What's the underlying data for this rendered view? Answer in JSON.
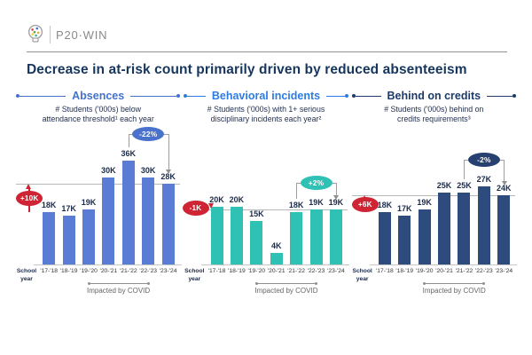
{
  "header": {
    "logo_text": "P20·WIN",
    "title": "Decrease in at-risk count primarily driven by reduced absenteeism"
  },
  "chart_data": [
    {
      "type": "bar",
      "title": "Absences",
      "subtitle": "# Students ('000s) below\nattendance threshold¹ each year",
      "categories": [
        "'17-'18",
        "'18-'19",
        "'19-'20",
        "'20-'21",
        "'21-'22",
        "'22-'23",
        "'23-'24"
      ],
      "values": [
        18,
        17,
        19,
        30,
        36,
        30,
        28
      ],
      "value_suffix": "K",
      "ylim": [
        0,
        40
      ],
      "x_axis_label": "School\nyear",
      "covid_label": "Impacted by COVID",
      "covid_span_indexes": [
        2,
        5
      ],
      "bar_color": "#5b7cd4",
      "title_color": "#4472cb",
      "change_badge": {
        "label": "+10K",
        "color": "#ce2433",
        "direction": "up"
      },
      "percent_badge": {
        "label": "-22%",
        "color": "#4a72cc",
        "from_index": 4,
        "to_index": 6
      }
    },
    {
      "type": "bar",
      "title": "Behavioral incidents",
      "subtitle": "# Students ('000s) with 1+ serious\ndisciplinary incidents each year²",
      "categories": [
        "'17-'18",
        "'18-'19",
        "'19-'20",
        "'20-'21",
        "'21-'22",
        "'22-'23",
        "'23-'24"
      ],
      "values": [
        20,
        20,
        15,
        4,
        18,
        19,
        19
      ],
      "value_suffix": "K",
      "ylim": [
        0,
        40
      ],
      "x_axis_label": "School\nyear",
      "covid_label": "Impacted by COVID",
      "covid_span_indexes": [
        2,
        5
      ],
      "bar_color": "#2fc2b4",
      "title_color": "#2d7ce4",
      "change_badge": {
        "label": "-1K",
        "color": "#ce2433",
        "direction": "down"
      },
      "percent_badge": {
        "label": "+2%",
        "color": "#2fc2b4",
        "from_index": 4,
        "to_index": 6
      }
    },
    {
      "type": "bar",
      "title": "Behind on credits",
      "subtitle": "# Students ('000s) behind on\ncredits requirements³",
      "categories": [
        "'17-'18",
        "'18-'19",
        "'19-'20",
        "'20-'21",
        "'21-'22",
        "'22-'23",
        "'23-'24"
      ],
      "values": [
        18,
        17,
        19,
        25,
        25,
        27,
        24
      ],
      "value_suffix": "K",
      "ylim": [
        0,
        40
      ],
      "x_axis_label": "School\nyear",
      "covid_label": "Impacted by COVID",
      "covid_span_indexes": [
        2,
        5
      ],
      "bar_color": "#2e4b7e",
      "title_color": "#1d3a6b",
      "change_badge": {
        "label": "+6K",
        "color": "#ce2433",
        "direction": "up"
      },
      "percent_badge": {
        "label": "-2%",
        "color": "#27406f",
        "from_index": 4,
        "to_index": 6
      }
    }
  ]
}
